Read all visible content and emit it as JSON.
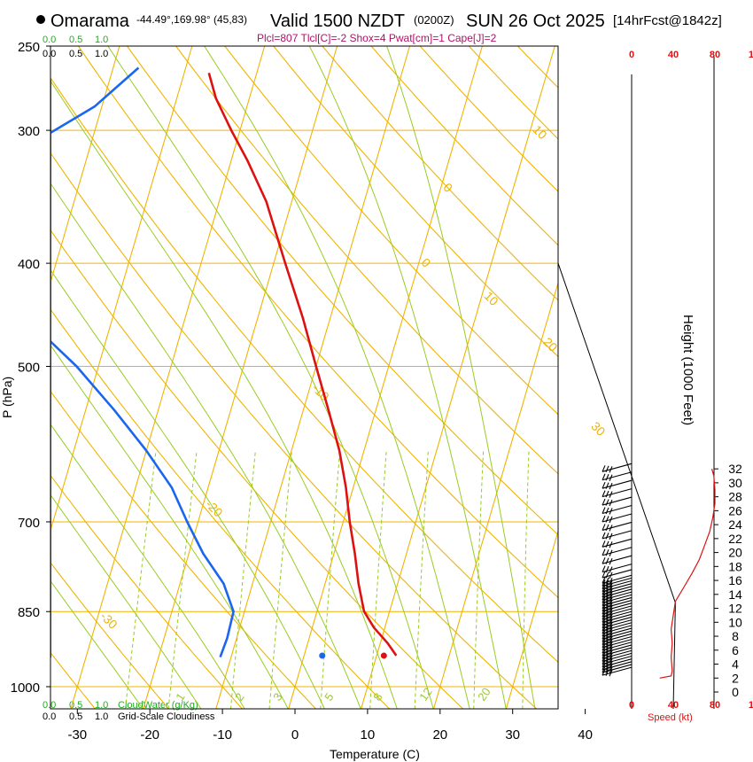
{
  "header": {
    "location": "Omarama",
    "coords": "-44.49°,169.98° (45,83)",
    "valid": "Valid 1500 NZDT",
    "utc": "(0200Z)",
    "date": "SUN 26 Oct 2025",
    "forecast": "[14hrFcst@1842z]",
    "indices": "Plcl=807 Tlcl[C]=-2 Shox=4 Pwat[cm]=1 Cape[J]=2"
  },
  "colors": {
    "temp": "#dd1111",
    "dew": "#1a66ee",
    "isotherm": "#f0b400",
    "dry_adiabat": "#f0b400",
    "moist_adiabat": "#99cc22",
    "mixing_ratio": "#99cc22",
    "cloud_water": "#22aa22",
    "wind_profile": "#dd1111"
  },
  "chart_data": {
    "type": "line",
    "title": "Omarama skew-T sounding",
    "xlabel": "Temperature (C)",
    "ylabel": "P (hPa)",
    "right_ylabel": "Height (1000 Feet)",
    "xlim": [
      -35,
      45
    ],
    "ylim_hpa": [
      1000,
      250
    ],
    "x_ticks": [
      "-30",
      "-20",
      "-10",
      "0",
      "10",
      "20",
      "30",
      "40"
    ],
    "x_tick_values": [
      -30,
      -20,
      -10,
      0,
      10,
      20,
      30,
      40
    ],
    "p_ticks": [
      "250",
      "300",
      "400",
      "500",
      "700",
      "850",
      "1000"
    ],
    "p_tick_values": [
      250,
      300,
      400,
      500,
      700,
      850,
      1000
    ],
    "isotherm_labels": [
      {
        "text": "10",
        "t": 10,
        "p": 300
      },
      {
        "text": "0",
        "t": 0,
        "p": 400
      },
      {
        "text": "-10",
        "t": -10,
        "p": 525
      },
      {
        "text": "-20",
        "t": -20,
        "p": 675
      },
      {
        "text": "-30",
        "t": -30,
        "p": 860
      },
      {
        "text": "0",
        "t": 0,
        "p": 340
      },
      {
        "text": "10",
        "t": 10,
        "p": 430
      },
      {
        "text": "20",
        "t": 20,
        "p": 475
      },
      {
        "text": "30",
        "t": 30,
        "p": 570
      }
    ],
    "mixing_ratio_labels": [
      "1",
      "2",
      "3",
      "5",
      "8",
      "12",
      "20"
    ],
    "mixing_ratio_values": [
      1,
      2,
      3,
      5,
      8,
      12,
      20
    ],
    "temperature_profile": [
      {
        "p": 935,
        "t": 12.7
      },
      {
        "p": 910,
        "t": 11.0
      },
      {
        "p": 880,
        "t": 8.5
      },
      {
        "p": 850,
        "t": 6.5
      },
      {
        "p": 800,
        "t": 4.6
      },
      {
        "p": 750,
        "t": 2.9
      },
      {
        "p": 700,
        "t": 0.9
      },
      {
        "p": 650,
        "t": -1.0
      },
      {
        "p": 600,
        "t": -3.4
      },
      {
        "p": 550,
        "t": -6.5
      },
      {
        "p": 500,
        "t": -10.0
      },
      {
        "p": 450,
        "t": -13.8
      },
      {
        "p": 400,
        "t": -18.4
      },
      {
        "p": 350,
        "t": -23.5
      },
      {
        "p": 320,
        "t": -27.8
      },
      {
        "p": 300,
        "t": -31.2
      },
      {
        "p": 280,
        "t": -34.6
      },
      {
        "p": 265,
        "t": -36.6
      }
    ],
    "dewpoint_profile": [
      {
        "p": 938,
        "t": -11.5
      },
      {
        "p": 900,
        "t": -11.3
      },
      {
        "p": 850,
        "t": -11.5
      },
      {
        "p": 800,
        "t": -14.0
      },
      {
        "p": 750,
        "t": -18.0
      },
      {
        "p": 700,
        "t": -21.5
      },
      {
        "p": 650,
        "t": -25.0
      },
      {
        "p": 600,
        "t": -30.0
      },
      {
        "p": 550,
        "t": -36.0
      },
      {
        "p": 500,
        "t": -43.0
      },
      {
        "p": 450,
        "t": -52.0
      },
      {
        "p": 420,
        "t": -61.0
      },
      {
        "p": 400,
        "t": -68.0
      },
      {
        "p": 340,
        "t": -71.0
      },
      {
        "p": 325,
        "t": -66.0
      },
      {
        "p": 305,
        "t": -57.0
      },
      {
        "p": 285,
        "t": -51.0
      },
      {
        "p": 262,
        "t": -46.5
      }
    ],
    "surface_temp": {
      "p": 935,
      "t": 11.0
    },
    "surface_dew": {
      "p": 935,
      "t": 2.5
    },
    "height_axis": {
      "label": "Height (1000 Feet)",
      "ticks": [
        "0",
        "2",
        "4",
        "6",
        "8",
        "10",
        "12",
        "14",
        "16",
        "18",
        "20",
        "22",
        "24",
        "26",
        "28",
        "30",
        "32"
      ],
      "values": [
        0,
        2,
        4,
        6,
        8,
        10,
        12,
        14,
        16,
        18,
        20,
        22,
        24,
        26,
        28,
        30,
        32
      ]
    },
    "wind_speed_axis": {
      "label": "Speed (kt)",
      "ticks": [
        "0",
        "40",
        "80",
        "120"
      ],
      "values": [
        0,
        40,
        80,
        120
      ],
      "profile": [
        {
          "h": 2.0,
          "v": 27
        },
        {
          "h": 2.3,
          "v": 38
        },
        {
          "h": 3.0,
          "v": 39
        },
        {
          "h": 5.0,
          "v": 38
        },
        {
          "h": 7.0,
          "v": 39
        },
        {
          "h": 9.0,
          "v": 38
        },
        {
          "h": 11.0,
          "v": 40
        },
        {
          "h": 13.0,
          "v": 42
        },
        {
          "h": 15.0,
          "v": 50
        },
        {
          "h": 17.0,
          "v": 58
        },
        {
          "h": 19.0,
          "v": 65
        },
        {
          "h": 21.0,
          "v": 70
        },
        {
          "h": 23.0,
          "v": 75
        },
        {
          "h": 25.0,
          "v": 78
        },
        {
          "h": 27.0,
          "v": 80
        },
        {
          "h": 29.0,
          "v": 80
        },
        {
          "h": 31.0,
          "v": 79
        },
        {
          "h": 32.0,
          "v": 77
        }
      ]
    },
    "wind_barbs_height_kft": [
      2.4,
      2.8,
      3.2,
      3.6,
      4.0,
      4.4,
      4.8,
      5.2,
      5.6,
      6.0,
      6.4,
      6.8,
      7.2,
      7.6,
      8.0,
      8.4,
      8.8,
      9.2,
      9.6,
      10.0,
      10.4,
      10.8,
      11.2,
      11.6,
      12.0,
      12.4,
      12.8,
      13.2,
      13.6,
      14.0,
      14.4,
      14.8,
      15.2,
      15.6,
      16.4,
      17.2,
      18.4,
      19.6,
      20.8,
      22.0,
      23.2,
      24.4,
      25.6,
      26.8,
      28.0,
      29.2,
      30.4,
      31.6
    ],
    "cloud_water": {
      "label": "CloudWater (g/Kg)",
      "ticks": [
        "0.0",
        "0.5",
        "1.0"
      ],
      "values": [
        0.0,
        0.5,
        1.0
      ]
    },
    "cloudiness": {
      "label": "Grid-Scale Cloudiness",
      "ticks": [
        "0.0",
        "0.5",
        "1.0"
      ],
      "values": [
        0.0,
        0.5,
        1.0
      ]
    }
  }
}
